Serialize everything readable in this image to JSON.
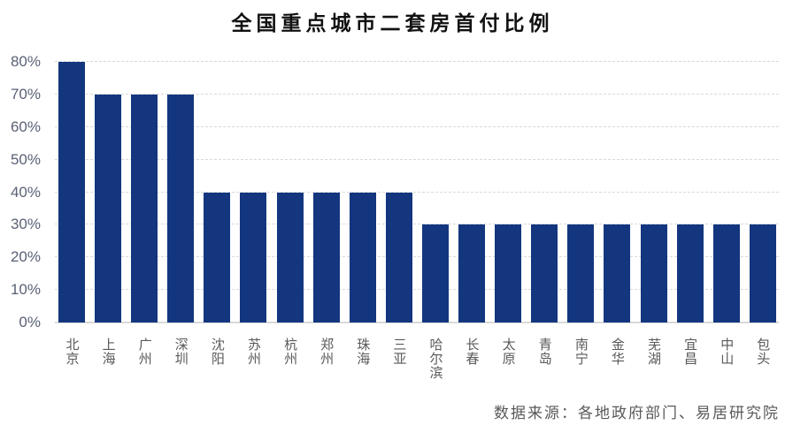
{
  "colors": {
    "bar": "#13367f",
    "gridline": "#d9d9d9",
    "axis_line": "#d9d9d9",
    "y_tick_label": "#5a6175",
    "x_tick_label": "#595959",
    "title": "#111111",
    "background": "#ffffff"
  },
  "chart_data": {
    "type": "bar",
    "title": "全国重点城市二套房首付比例",
    "categories": [
      "北京",
      "上海",
      "广州",
      "深圳",
      "沈阳",
      "苏州",
      "杭州",
      "郑州",
      "珠海",
      "三亚",
      "哈尔滨",
      "长春",
      "太原",
      "青岛",
      "南宁",
      "金华",
      "芜湖",
      "宜昌",
      "中山",
      "包头"
    ],
    "values": [
      80,
      70,
      70,
      70,
      40,
      40,
      40,
      40,
      40,
      40,
      30,
      30,
      30,
      30,
      30,
      30,
      30,
      30,
      30,
      30
    ],
    "value_unit": "%",
    "xlabel": "",
    "ylabel": "",
    "ylim": [
      0,
      80
    ],
    "ytick_step": 10,
    "ytick_labels": [
      "0%",
      "10%",
      "20%",
      "30%",
      "40%",
      "50%",
      "60%",
      "70%",
      "80%"
    ],
    "grid": "horizontal-dashed",
    "legend": "none",
    "source": "数据来源：各地政府部门、易居研究院"
  }
}
